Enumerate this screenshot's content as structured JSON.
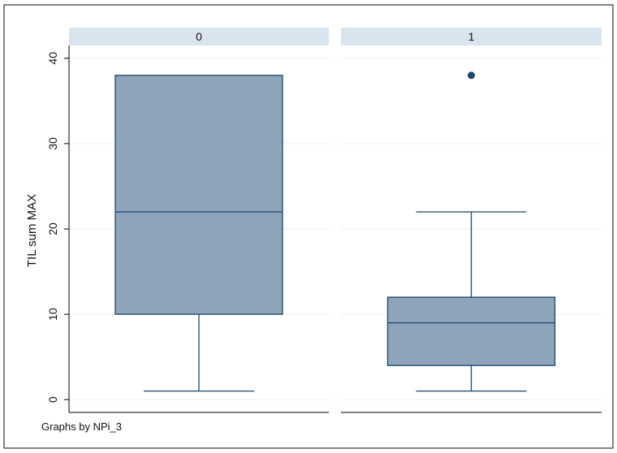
{
  "chart_data": {
    "type": "box",
    "ylabel": "TIL sum MAX",
    "ylim": [
      -1.5,
      41.5
    ],
    "yticks": [
      0,
      10,
      20,
      30,
      40
    ],
    "grid": true,
    "panels": [
      {
        "label": "0",
        "whisker_low": 1,
        "q1": 10,
        "median": 22,
        "q3": 38,
        "whisker_high": 38,
        "outliers": []
      },
      {
        "label": "1",
        "whisker_low": 1,
        "q1": 4,
        "median": 9,
        "q3": 12,
        "whisker_high": 22,
        "outliers": [
          38
        ]
      }
    ],
    "note": "Graphs by NPi_3"
  },
  "colors": {
    "box_fill": "#8ea4bb",
    "box_stroke": "#1a476f",
    "outlier": "#1a476f",
    "strip": "#dae4ee",
    "grid": "#eaf2f3",
    "axis": "#000000"
  }
}
